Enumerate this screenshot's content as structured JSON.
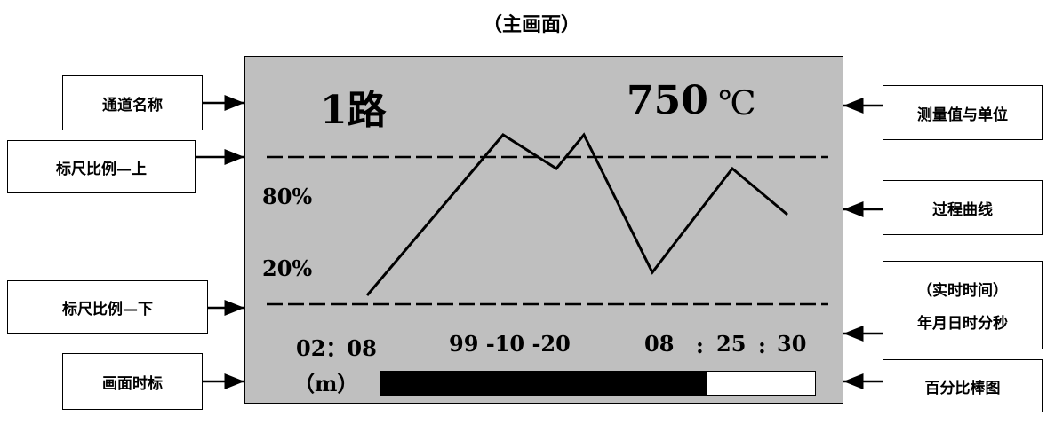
{
  "caption": "（主画面）",
  "screen": {
    "channel_name": "1路",
    "measured_value": "750",
    "unit": "℃",
    "scale_upper_pct": "80%",
    "scale_lower_pct": "20%",
    "time_scale": "02：08",
    "time_scale_unit": "（m）",
    "date": "99 -10 -20",
    "clock_h": "08",
    "clock_m": "25",
    "clock_s": "30",
    "clock_sep": ":",
    "percent_bar_fill": 0.75
  },
  "labels": {
    "channel_name": "通道名称",
    "scale_upper": "标尺比例—上",
    "scale_lower": "标尺比例—下",
    "screen_time_scale": "画面时标",
    "measured_value_unit": "测量值与单位",
    "process_curve": "过程曲线",
    "realtime_time_title": "（实时时间）",
    "realtime_time_detail": "年月日时分秒",
    "percent_bar": "百分比棒图"
  }
}
